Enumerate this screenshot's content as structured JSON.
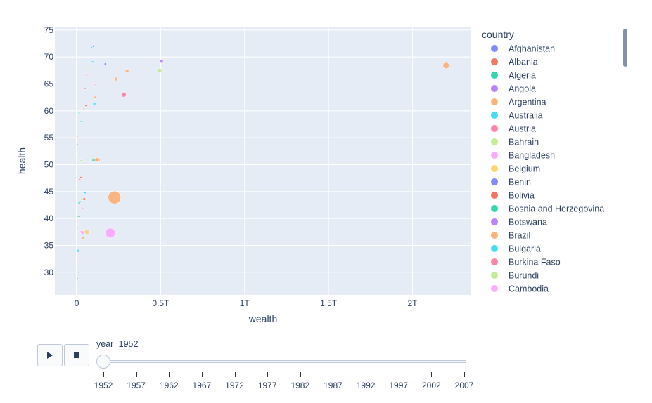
{
  "chart_data": {
    "type": "scatter",
    "title": "",
    "xlabel": "wealth",
    "ylabel": "health",
    "xlim": [
      -0.13,
      2.35
    ],
    "ylim": [
      25.8,
      75.5
    ],
    "x_unit_suffix": "T",
    "x_ticks": [
      0,
      0.5,
      1,
      1.5,
      2
    ],
    "x_tick_labels": [
      "0",
      "0.5T",
      "1T",
      "1.5T",
      "2T"
    ],
    "y_ticks": [
      30,
      35,
      40,
      45,
      50,
      55,
      60,
      65,
      70,
      75
    ],
    "y_tick_labels": [
      "30",
      "35",
      "40",
      "45",
      "50",
      "55",
      "60",
      "65",
      "70",
      "75"
    ],
    "grid": true,
    "legend_title": "country",
    "legend_placement": "right",
    "series": [
      {
        "name": "Afghanistan",
        "color": "#636efa",
        "x": [
          0.006
        ],
        "y": [
          28.8
        ],
        "size": [
          2
        ]
      },
      {
        "name": "Albania",
        "color": "#ef553b",
        "x": [
          0.003
        ],
        "y": [
          55.2
        ],
        "size": [
          1.5
        ]
      },
      {
        "name": "Algeria",
        "color": "#00cc96",
        "x": [
          0.022
        ],
        "y": [
          43.1
        ],
        "size": [
          2.5
        ]
      },
      {
        "name": "Angola",
        "color": "#ab63fa",
        "x": [
          0.01
        ],
        "y": [
          30.0
        ],
        "size": [
          2
        ]
      },
      {
        "name": "Argentina",
        "color": "#ffa15a",
        "x": [
          0.11
        ],
        "y": [
          62.5
        ],
        "size": [
          3.5
        ]
      },
      {
        "name": "Australia",
        "color": "#19d3f3",
        "x": [
          0.095
        ],
        "y": [
          69.1
        ],
        "size": [
          3
        ]
      },
      {
        "name": "Austria",
        "color": "#ff6692",
        "x": [
          0.045
        ],
        "y": [
          66.8
        ],
        "size": [
          2.5
        ]
      },
      {
        "name": "Bahrain",
        "color": "#b6e880",
        "x": [
          0.001
        ],
        "y": [
          50.9
        ],
        "size": [
          1
        ]
      },
      {
        "name": "Bangladesh",
        "color": "#ff97ff",
        "x": [
          0.028
        ],
        "y": [
          37.5
        ],
        "size": [
          4
        ]
      },
      {
        "name": "Belgium",
        "color": "#fecb52",
        "x": [
          0.06
        ],
        "y": [
          68.0
        ],
        "size": [
          2.5
        ]
      },
      {
        "name": "Benin",
        "color": "#636efa",
        "x": [
          0.003
        ],
        "y": [
          38.2
        ],
        "size": [
          1.5
        ]
      },
      {
        "name": "Bolivia",
        "color": "#ef553b",
        "x": [
          0.008
        ],
        "y": [
          40.4
        ],
        "size": [
          2
        ]
      },
      {
        "name": "Bosnia and Herzegovina",
        "color": "#00cc96",
        "x": [
          0.004
        ],
        "y": [
          53.8
        ],
        "size": [
          2
        ]
      },
      {
        "name": "Botswana",
        "color": "#ab63fa",
        "x": [
          0.001
        ],
        "y": [
          47.6
        ],
        "size": [
          1.5
        ]
      },
      {
        "name": "Brazil",
        "color": "#ffa15a",
        "x": [
          0.13
        ],
        "y": [
          50.9
        ],
        "size": [
          5
        ]
      },
      {
        "name": "Bulgaria",
        "color": "#19d3f3",
        "x": [
          0.015
        ],
        "y": [
          59.6
        ],
        "size": [
          2.5
        ]
      },
      {
        "name": "Burkina Faso",
        "color": "#ff6692",
        "x": [
          0.003
        ],
        "y": [
          31.9
        ],
        "size": [
          2
        ]
      },
      {
        "name": "Burundi",
        "color": "#b6e880",
        "x": [
          0.002
        ],
        "y": [
          39.0
        ],
        "size": [
          1.5
        ]
      },
      {
        "name": "Cambodia",
        "color": "#ff97ff",
        "x": [
          0.004
        ],
        "y": [
          39.4
        ],
        "size": [
          2
        ]
      },
      {
        "name": "",
        "color": "#ffa15a",
        "x": [
          2.2
        ],
        "y": [
          68.4
        ],
        "size": [
          9
        ]
      },
      {
        "name": "",
        "color": "#ffa15a",
        "x": [
          0.225
        ],
        "y": [
          43.9
        ],
        "size": [
          18
        ]
      },
      {
        "name": "",
        "color": "#ff97ff",
        "x": [
          0.2
        ],
        "y": [
          37.3
        ],
        "size": [
          14
        ]
      },
      {
        "name": "",
        "color": "#ab63fa",
        "x": [
          0.505
        ],
        "y": [
          69.2
        ],
        "size": [
          5
        ]
      },
      {
        "name": "",
        "color": "#b6e880",
        "x": [
          0.495
        ],
        "y": [
          67.5
        ],
        "size": [
          6
        ]
      },
      {
        "name": "",
        "color": "#ffa15a",
        "x": [
          0.3
        ],
        "y": [
          67.4
        ],
        "size": [
          5
        ]
      },
      {
        "name": "",
        "color": "#ff6692",
        "x": [
          0.28
        ],
        "y": [
          63.0
        ],
        "size": [
          7
        ]
      },
      {
        "name": "",
        "color": "#ffa15a",
        "x": [
          0.235
        ],
        "y": [
          65.9
        ],
        "size": [
          5
        ]
      },
      {
        "name": "",
        "color": "#636efa",
        "x": [
          0.17
        ],
        "y": [
          68.7
        ],
        "size": [
          3
        ]
      },
      {
        "name": "",
        "color": "#19d3f3",
        "x": [
          0.105
        ],
        "y": [
          61.3
        ],
        "size": [
          4
        ]
      },
      {
        "name": "",
        "color": "#ffa15a",
        "x": [
          0.12
        ],
        "y": [
          50.9
        ],
        "size": [
          6
        ]
      },
      {
        "name": "",
        "color": "#00cc96",
        "x": [
          0.1
        ],
        "y": [
          50.8
        ],
        "size": [
          4
        ]
      },
      {
        "name": "",
        "color": "#ff97ff",
        "x": [
          0.112
        ],
        "y": [
          64.9
        ],
        "size": [
          3
        ]
      },
      {
        "name": "",
        "color": "#fecb52",
        "x": [
          0.062
        ],
        "y": [
          37.5
        ],
        "size": [
          7
        ]
      },
      {
        "name": "",
        "color": "#ff97ff",
        "x": [
          0.035
        ],
        "y": [
          37.4
        ],
        "size": [
          5
        ]
      },
      {
        "name": "",
        "color": "#ffa15a",
        "x": [
          0.038
        ],
        "y": [
          36.3
        ],
        "size": [
          4
        ]
      },
      {
        "name": "",
        "color": "#ef553b",
        "x": [
          0.045
        ],
        "y": [
          43.6
        ],
        "size": [
          4
        ]
      },
      {
        "name": "",
        "color": "#b6e880",
        "x": [
          0.03
        ],
        "y": [
          43.5
        ],
        "size": [
          3
        ]
      },
      {
        "name": "",
        "color": "#00cc96",
        "x": [
          0.015
        ],
        "y": [
          42.9
        ],
        "size": [
          3
        ]
      },
      {
        "name": "",
        "color": "#19d3f3",
        "x": [
          0.05
        ],
        "y": [
          44.8
        ],
        "size": [
          3
        ]
      },
      {
        "name": "",
        "color": "#ef553b",
        "x": [
          0.025
        ],
        "y": [
          47.6
        ],
        "size": [
          3
        ]
      },
      {
        "name": "",
        "color": "#ff6692",
        "x": [
          0.018
        ],
        "y": [
          47.2
        ],
        "size": [
          3
        ]
      },
      {
        "name": "",
        "color": "#b6e880",
        "x": [
          0.025
        ],
        "y": [
          50.7
        ],
        "size": [
          3
        ]
      },
      {
        "name": "",
        "color": "#00cc96",
        "x": [
          0.015
        ],
        "y": [
          40.4
        ],
        "size": [
          3
        ]
      },
      {
        "name": "",
        "color": "#ff97ff",
        "x": [
          0.035
        ],
        "y": [
          41.9
        ],
        "size": [
          3
        ]
      },
      {
        "name": "",
        "color": "#19d3f3",
        "x": [
          0.008
        ],
        "y": [
          34.0
        ],
        "size": [
          4
        ]
      },
      {
        "name": "",
        "color": "#ef553b",
        "x": [
          0.055
        ],
        "y": [
          61.0
        ],
        "size": [
          3
        ]
      },
      {
        "name": "",
        "color": "#ff97ff",
        "x": [
          0.06
        ],
        "y": [
          66.6
        ],
        "size": [
          3
        ]
      },
      {
        "name": "",
        "color": "#636efa",
        "x": [
          0.1
        ],
        "y": [
          72.0
        ],
        "size": [
          3
        ]
      },
      {
        "name": "",
        "color": "#19d3f3",
        "x": [
          0.09
        ],
        "y": [
          71.8
        ],
        "size": [
          2
        ]
      },
      {
        "name": "",
        "color": "#ef553b",
        "x": [
          0.05
        ],
        "y": [
          64.1
        ],
        "size": [
          2
        ]
      },
      {
        "name": "",
        "color": "#00cc96",
        "x": [
          0.025
        ],
        "y": [
          58.0
        ],
        "size": [
          2
        ]
      },
      {
        "name": "",
        "color": "#ffa15a",
        "x": [
          0.04
        ],
        "y": [
          60.4
        ],
        "size": [
          2
        ]
      }
    ]
  },
  "slider": {
    "current_label": "year=1952",
    "current_value": 1952,
    "steps": [
      "1952",
      "1957",
      "1962",
      "1967",
      "1972",
      "1977",
      "1982",
      "1987",
      "1992",
      "1997",
      "2002",
      "2007"
    ]
  },
  "controls": {
    "play_icon": "play-icon",
    "stop_icon": "stop-icon"
  },
  "colors": {
    "plot_bg": "#e5ecf6",
    "grid": "#ffffff",
    "text": "#2a3f5f"
  }
}
